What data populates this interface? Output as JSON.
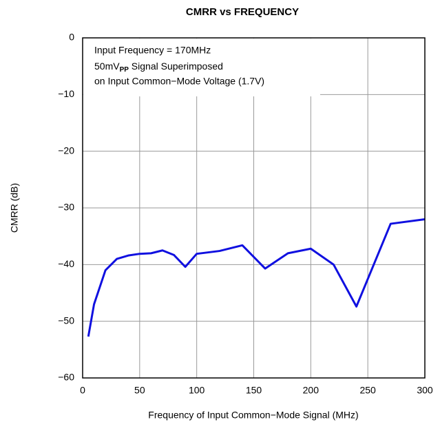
{
  "chart_data": {
    "type": "line",
    "title": "CMRR vs FREQUENCY",
    "x_label": "Frequency of Input Common−Mode Signal (MHz)",
    "y_label": "CMRR (dB)",
    "annotation": [
      {
        "text": "Input Frequency = 170MHz"
      },
      {
        "text": "50mV",
        "sub": "PP",
        "rest": " Signal Superimposed"
      },
      {
        "text": "on Input Common−Mode Voltage (1.7V)"
      }
    ],
    "x": [
      5,
      10,
      20,
      30,
      40,
      50,
      60,
      70,
      80,
      90,
      100,
      120,
      140,
      160,
      180,
      200,
      220,
      240,
      270,
      300
    ],
    "series": [
      {
        "name": "CMRR",
        "color": "#1010e0",
        "values": [
          -52.7,
          -47,
          -41,
          -39,
          -38.4,
          -38.1,
          -38,
          -37.5,
          -38.3,
          -40.4,
          -38.1,
          -37.6,
          -36.6,
          -40.7,
          -38,
          -37.2,
          -40,
          -47.4,
          -32.8,
          -32
        ]
      }
    ],
    "xlim": [
      0,
      300
    ],
    "xticks": [
      0,
      50,
      100,
      150,
      200,
      250,
      300
    ],
    "ylim": [
      -60,
      0
    ],
    "yticks": [
      {
        "value": -60,
        "label": "−60"
      },
      {
        "value": -50,
        "label": "−50"
      },
      {
        "value": -40,
        "label": "−40"
      },
      {
        "value": -30,
        "label": "−30"
      },
      {
        "value": -20,
        "label": "−20"
      },
      {
        "value": -10,
        "label": "−10"
      },
      0
    ],
    "grid": true
  }
}
